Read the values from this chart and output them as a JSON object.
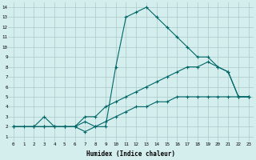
{
  "xlabel": "Humidex (Indice chaleur)",
  "ylabel": "",
  "xlim": [
    -0.5,
    23.5
  ],
  "ylim": [
    0.5,
    14.5
  ],
  "xticks": [
    0,
    1,
    2,
    3,
    4,
    5,
    6,
    7,
    8,
    9,
    10,
    11,
    12,
    13,
    14,
    15,
    16,
    17,
    18,
    19,
    20,
    21,
    22,
    23
  ],
  "yticks": [
    1,
    2,
    3,
    4,
    5,
    6,
    7,
    8,
    9,
    10,
    11,
    12,
    13,
    14
  ],
  "background_color": "#d4eeee",
  "grid_color": "#aacaca",
  "line_color": "#006666",
  "line1_x": [
    0,
    1,
    2,
    3,
    4,
    5,
    6,
    7,
    8,
    9,
    10,
    11,
    12,
    13,
    14,
    15,
    16,
    17,
    18,
    19,
    20,
    21,
    22,
    23
  ],
  "line1_y": [
    2,
    2,
    2,
    3,
    2,
    2,
    2,
    1.5,
    2,
    2,
    8,
    13,
    13.5,
    14,
    13,
    12,
    11,
    10,
    9,
    9,
    8,
    7.5,
    5,
    5
  ],
  "line2_x": [
    0,
    2,
    3,
    4,
    5,
    6,
    7,
    8,
    9,
    10,
    11,
    12,
    13,
    14,
    15,
    16,
    17,
    18,
    19,
    20,
    21,
    22,
    23
  ],
  "line2_y": [
    2,
    2,
    2,
    2,
    2,
    2,
    3,
    3,
    4,
    4.5,
    5,
    5.5,
    6,
    6.5,
    7,
    7.5,
    8,
    8,
    8.5,
    8,
    7.5,
    5,
    5
  ],
  "line3_x": [
    0,
    2,
    3,
    4,
    5,
    6,
    7,
    8,
    9,
    10,
    11,
    12,
    13,
    14,
    15,
    16,
    17,
    18,
    19,
    20,
    21,
    22,
    23
  ],
  "line3_y": [
    2,
    2,
    2,
    2,
    2,
    2,
    2.5,
    2,
    2.5,
    3,
    3.5,
    4,
    4,
    4.5,
    4.5,
    5,
    5,
    5,
    5,
    5,
    5,
    5,
    5
  ]
}
